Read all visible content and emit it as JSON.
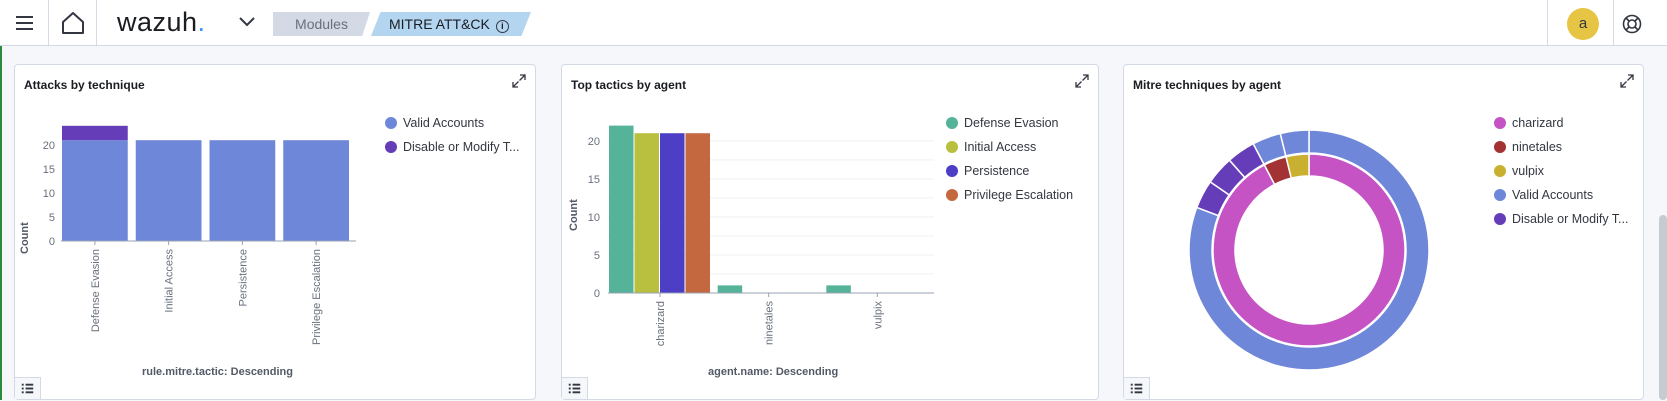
{
  "header": {
    "logo_text": "wazuh",
    "logo_dot": ".",
    "breadcrumbs": [
      "Modules",
      "MITRE ATT&CK"
    ],
    "info_icon": "i",
    "user_initial": "a"
  },
  "panels": [
    {
      "title": "Attacks by technique",
      "chart_data": {
        "type": "bar",
        "stacked": true,
        "categories": [
          "Defense Evasion",
          "Initial Access",
          "Persistence",
          "Privilege Escalation"
        ],
        "series": [
          {
            "name": "Valid Accounts",
            "color": "#6f87d8",
            "values": [
              21,
              21,
              21,
              21
            ]
          },
          {
            "name": "Disable or Modify T...",
            "color": "#663db8",
            "values": [
              3,
              0,
              0,
              0
            ]
          }
        ],
        "ylabel": "Count",
        "xlabel": "rule.mitre.tactic: Descending",
        "yticks": [
          0,
          5,
          10,
          15,
          20
        ],
        "ylim": [
          0,
          25
        ],
        "legend": "right"
      }
    },
    {
      "title": "Top tactics by agent",
      "chart_data": {
        "type": "bar",
        "grouped": true,
        "categories": [
          "charizard",
          "ninetales",
          "vulpix"
        ],
        "series": [
          {
            "name": "Defense Evasion",
            "color": "#54b399",
            "values": [
              22,
              1,
              1
            ]
          },
          {
            "name": "Initial Access",
            "color": "#b9bf3f",
            "values": [
              21,
              0,
              0
            ]
          },
          {
            "name": "Persistence",
            "color": "#4d3fc5",
            "values": [
              21,
              0,
              0
            ]
          },
          {
            "name": "Privilege Escalation",
            "color": "#c4683f",
            "values": [
              21,
              0,
              0
            ]
          }
        ],
        "ylabel": "Count",
        "xlabel": "agent.name: Descending",
        "yticks": [
          0,
          5,
          10,
          15,
          20
        ],
        "ylim": [
          0,
          23
        ],
        "grid": true,
        "legend": "right"
      }
    },
    {
      "title": "Mitre techniques by agent",
      "chart_data": {
        "type": "pie",
        "donut": true,
        "inner_ring": [
          {
            "name": "charizard",
            "color": "#c553c3",
            "value": 24
          },
          {
            "name": "ninetales",
            "color": "#a23234",
            "value": 1
          },
          {
            "name": "vulpix",
            "color": "#c9b030",
            "value": 1
          }
        ],
        "outer_ring": [
          {
            "name": "Valid Accounts",
            "color": "#6f87d8",
            "value": 21
          },
          {
            "name": "Disable or Modify T...",
            "color": "#663db8",
            "value": 1
          },
          {
            "name": "Disable or Modify T...",
            "color": "#663db8",
            "value": 1
          },
          {
            "name": "Disable or Modify T...",
            "color": "#663db8",
            "value": 1
          },
          {
            "name": "Valid Accounts",
            "color": "#6f87d8",
            "value": 1
          },
          {
            "name": "Valid Accounts",
            "color": "#6f87d8",
            "value": 1
          }
        ],
        "legend_items": [
          {
            "name": "charizard",
            "color": "#c553c3"
          },
          {
            "name": "ninetales",
            "color": "#a23234"
          },
          {
            "name": "vulpix",
            "color": "#c9b030"
          },
          {
            "name": "Valid Accounts",
            "color": "#6f87d8"
          },
          {
            "name": "Disable or Modify T...",
            "color": "#663db8"
          }
        ],
        "legend": "right"
      }
    }
  ]
}
